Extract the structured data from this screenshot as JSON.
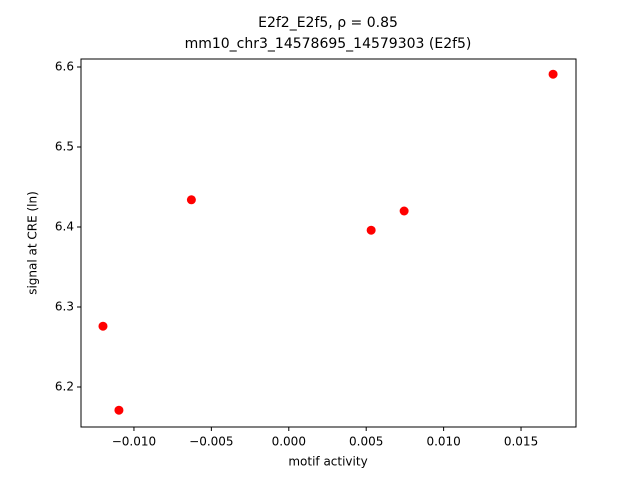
{
  "chart_data": {
    "type": "scatter",
    "title": "E2f2_E2f5, ρ = 0.85",
    "subtitle": "mm10_chr3_14578695_14579303 (E2f5)",
    "x_label": "motif activity",
    "y_label": "signal at CRE (ln)",
    "color": "#ff0000",
    "x": [
      -0.012,
      -0.01097,
      -0.00629,
      0.00532,
      0.00745,
      0.01707
    ],
    "values": [
      6.276,
      6.171,
      6.434,
      6.396,
      6.42,
      6.591
    ],
    "xlim": [
      -0.01342,
      0.01855
    ],
    "ylim": [
      6.15,
      6.61
    ],
    "xticks": [
      {
        "value": -0.01,
        "label": "−0.010"
      },
      {
        "value": -0.005,
        "label": "−0.005"
      },
      {
        "value": 0,
        "label": "0.000"
      },
      0.005,
      {
        "value": 0.01,
        "label": "0.010"
      },
      0.015
    ],
    "yticks": [
      6.2,
      6.3,
      6.4,
      6.5,
      6.6
    ]
  }
}
